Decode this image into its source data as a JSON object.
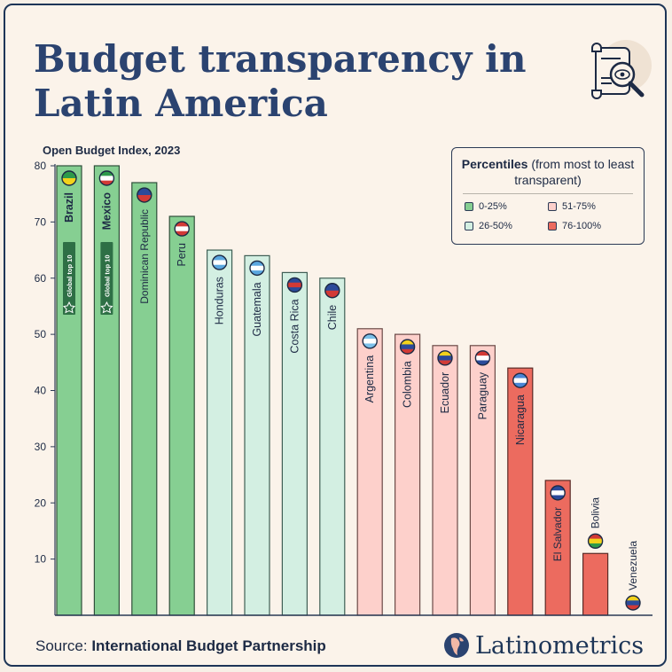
{
  "title": "Budget transparency in Latin America",
  "source": {
    "prefix": "Source: ",
    "name": "International Budget Partnership"
  },
  "brand": "Latinometrics",
  "legend": {
    "title_bold": "Percentiles",
    "title_rest": " (from most to least transparent)",
    "items": [
      {
        "label": "0-25%",
        "color": "#86cf92"
      },
      {
        "label": "51-75%",
        "color": "#fdd0cb"
      },
      {
        "label": "26-50%",
        "color": "#d3efe2"
      },
      {
        "label": "76-100%",
        "color": "#ec6b5f"
      }
    ]
  },
  "chart_data": {
    "type": "bar",
    "title": "Budget transparency in Latin America",
    "ylabel": "Open Budget Index, 2023",
    "ylim": [
      0,
      80
    ],
    "yticks": [
      10,
      20,
      30,
      40,
      50,
      60,
      70,
      80
    ],
    "categories": [
      "Brazil",
      "Mexico",
      "Dominican Republic",
      "Peru",
      "Honduras",
      "Guatemala",
      "Costa Rica",
      "Chile",
      "Argentina",
      "Colombia",
      "Ecuador",
      "Paraguay",
      "Nicaragua",
      "El Salvador",
      "Bolivia",
      "Venezuela"
    ],
    "values": [
      80,
      80,
      77,
      71,
      65,
      64,
      61,
      60,
      51,
      50,
      48,
      48,
      44,
      24,
      11,
      0
    ],
    "percentile": [
      "0-25%",
      "0-25%",
      "0-25%",
      "0-25%",
      "26-50%",
      "26-50%",
      "26-50%",
      "26-50%",
      "51-75%",
      "51-75%",
      "51-75%",
      "51-75%",
      "76-100%",
      "76-100%",
      "76-100%",
      "76-100%"
    ],
    "annotations": [
      {
        "category": "Brazil",
        "text": "Global top 10"
      },
      {
        "category": "Mexico",
        "text": "Global top 10"
      }
    ],
    "grid": false
  }
}
